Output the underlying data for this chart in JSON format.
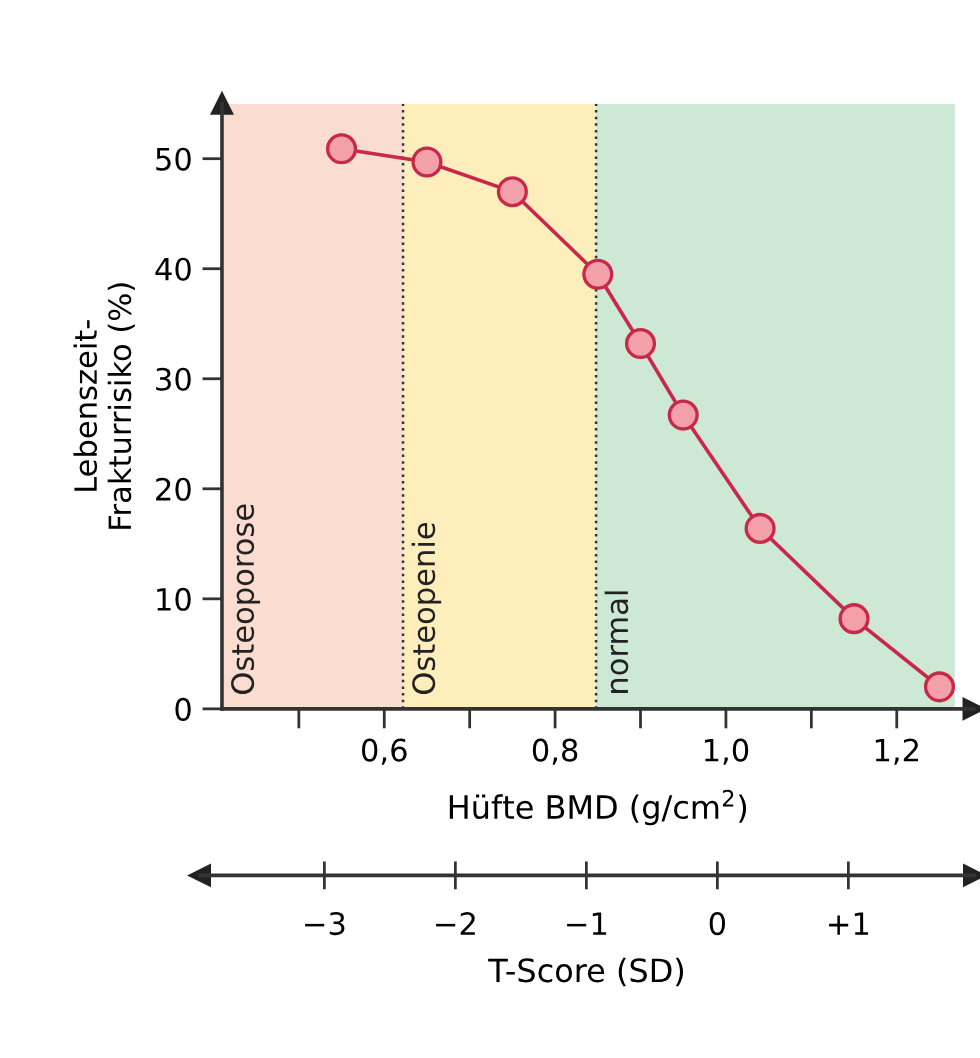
{
  "chart_data": {
    "type": "line",
    "xlabel": "Hüfte BMD (g/cm$^{2}$)",
    "ylabel": "Lebenszeit-\nFrakturrisiko (%)",
    "x": [
      0.55,
      0.65,
      0.75,
      0.85,
      0.9,
      0.95,
      1.04,
      1.15,
      1.25
    ],
    "series": [
      {
        "color": "#c8284a",
        "values": [
          50.9,
          49.7,
          47.0,
          39.5,
          33.2,
          26.7,
          16.4,
          8.2,
          2.0
        ]
      }
    ],
    "marker": "circle",
    "line_style": "solid",
    "grid": false,
    "legend": false,
    "xlim": [
      0.41,
      1.29
    ],
    "xticks": [
      {
        "value": 0.5,
        "label": null
      },
      {
        "value": 0.6,
        "label": "0,6"
      },
      {
        "value": 0.7,
        "label": null
      },
      {
        "value": 0.8,
        "label": "0,8"
      },
      {
        "value": 0.9,
        "label": null
      },
      {
        "value": 1.0,
        "label": "1,0"
      },
      {
        "value": 1.1,
        "label": null
      },
      {
        "value": 1.2,
        "label": "1,2"
      }
    ],
    "ylim": [
      0,
      55
    ],
    "yticks": [
      0,
      10,
      20,
      30,
      40,
      50
    ],
    "x2label": "T-Score (SD)",
    "x2lim": [
      -3.95,
      1.96
    ],
    "x2ticks": [
      {
        "value": -3,
        "label": "−3"
      },
      {
        "value": -2,
        "label": "−2"
      },
      {
        "value": -1,
        "label": "−1"
      },
      0,
      {
        "value": 1,
        "label": "+1"
      }
    ],
    "bands": [
      {
        "axis": "x",
        "from": 0.41,
        "to": 0.622,
        "label": "Osteoporose",
        "color": "#fbdcd0"
      },
      {
        "axis": "x",
        "from": 0.622,
        "to": 0.848,
        "label": "Osteopenie",
        "color": "#fdeebb"
      },
      {
        "axis": "x",
        "from": 0.848,
        "to": 1.268,
        "label": "normal",
        "color": "#cde8d5"
      }
    ],
    "ref_lines": [
      {
        "axis": "x",
        "value": 0.622,
        "color": "#333333",
        "line_style": "dotted"
      },
      {
        "axis": "x",
        "value": 0.848,
        "color": "#333333",
        "line_style": "dotted"
      }
    ]
  }
}
